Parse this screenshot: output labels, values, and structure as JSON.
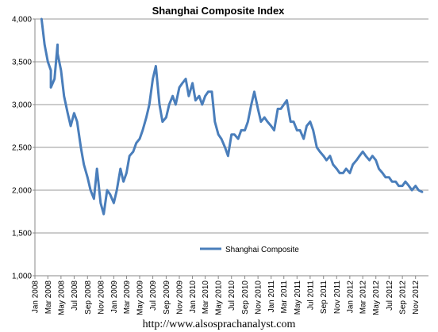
{
  "chart_data": {
    "type": "line",
    "title": "Shanghai Composite Index",
    "xlabel": "",
    "ylabel": "",
    "ylim": [
      1000,
      4000
    ],
    "yticks": [
      "1,000",
      "1,500",
      "2,000",
      "2,500",
      "3,000",
      "3,500",
      "4,000"
    ],
    "xticks": [
      "Jan 2008",
      "Mar 2008",
      "May 2008",
      "Jul 2008",
      "Sep 2008",
      "Nov 2008",
      "Jan 2009",
      "Mar 2009",
      "May 2009",
      "Jul 2009",
      "Sep 2009",
      "Nov 2009",
      "Jan 2010",
      "Mar 2010",
      "May 2010",
      "Jul 2010",
      "Sep 2010",
      "Nov 2010",
      "Jan 2011",
      "Mar 2011",
      "May 2011",
      "Jul 2011",
      "Sep 2011",
      "Nov 2011",
      "Jan 2012",
      "Mar 2012",
      "May 2012",
      "Jul 2012",
      "Sep 2012",
      "Nov 2012"
    ],
    "grid": "horizontal",
    "legend": "inside-bottom-center",
    "series": [
      {
        "name": "Shanghai Composite",
        "color": "#4a7ebb",
        "x": [
          "2008-02",
          "2008-02",
          "2008-03",
          "2008-03",
          "2008-03",
          "2008-04",
          "2008-04",
          "2008-04",
          "2008-05",
          "2008-05",
          "2008-06",
          "2008-06",
          "2008-07",
          "2008-07",
          "2008-08",
          "2008-08",
          "2008-09",
          "2008-09",
          "2008-10",
          "2008-10",
          "2008-11",
          "2008-11",
          "2008-12",
          "2008-12",
          "2009-01",
          "2009-01",
          "2009-02",
          "2009-02",
          "2009-03",
          "2009-03",
          "2009-04",
          "2009-04",
          "2009-05",
          "2009-05",
          "2009-06",
          "2009-06",
          "2009-07",
          "2009-07",
          "2009-08",
          "2009-08",
          "2009-09",
          "2009-09",
          "2009-10",
          "2009-10",
          "2009-11",
          "2009-11",
          "2009-12",
          "2009-12",
          "2010-01",
          "2010-01",
          "2010-02",
          "2010-02",
          "2010-03",
          "2010-03",
          "2010-04",
          "2010-04",
          "2010-05",
          "2010-05",
          "2010-06",
          "2010-06",
          "2010-07",
          "2010-07",
          "2010-08",
          "2010-08",
          "2010-09",
          "2010-09",
          "2010-10",
          "2010-10",
          "2010-11",
          "2010-11",
          "2010-12",
          "2010-12",
          "2011-01",
          "2011-01",
          "2011-02",
          "2011-02",
          "2011-03",
          "2011-03",
          "2011-04",
          "2011-04",
          "2011-05",
          "2011-05",
          "2011-06",
          "2011-06",
          "2011-07",
          "2011-07",
          "2011-08",
          "2011-08",
          "2011-09",
          "2011-09",
          "2011-10",
          "2011-10",
          "2011-11",
          "2011-11",
          "2011-12",
          "2011-12",
          "2012-01",
          "2012-01",
          "2012-02",
          "2012-02",
          "2012-03",
          "2012-03",
          "2012-04",
          "2012-04",
          "2012-05",
          "2012-05",
          "2012-06",
          "2012-06",
          "2012-07",
          "2012-07",
          "2012-08",
          "2012-08",
          "2012-09",
          "2012-09",
          "2012-10",
          "2012-10",
          "2012-11",
          "2012-11",
          "2012-12"
        ],
        "values": [
          4000,
          3700,
          3500,
          3400,
          3200,
          3300,
          3700,
          3600,
          3400,
          3100,
          2900,
          2750,
          2900,
          2800,
          2500,
          2300,
          2150,
          2000,
          1900,
          2250,
          1850,
          1720,
          2000,
          1950,
          1850,
          2000,
          2250,
          2100,
          2200,
          2400,
          2450,
          2550,
          2600,
          2700,
          2850,
          3000,
          3300,
          3450,
          3000,
          2800,
          2850,
          3000,
          3100,
          3000,
          3200,
          3250,
          3300,
          3100,
          3250,
          3050,
          3100,
          3000,
          3100,
          3150,
          3150,
          2800,
          2650,
          2600,
          2500,
          2400,
          2650,
          2650,
          2600,
          2700,
          2700,
          2800,
          3000,
          3150,
          2950,
          2800,
          2850,
          2800,
          2750,
          2700,
          2950,
          2950,
          3000,
          3050,
          2800,
          2800,
          2700,
          2700,
          2600,
          2750,
          2800,
          2700,
          2500,
          2450,
          2400,
          2350,
          2400,
          2300,
          2250,
          2200,
          2200,
          2250,
          2200,
          2300,
          2350,
          2400,
          2450,
          2400,
          2350,
          2400,
          2350,
          2250,
          2200,
          2150,
          2150,
          2100,
          2100,
          2050,
          2050,
          2100,
          2050,
          2000,
          2050,
          2000,
          1980
        ]
      }
    ]
  },
  "footer": {
    "url": "http://www.alsosprachanalyst.com"
  }
}
